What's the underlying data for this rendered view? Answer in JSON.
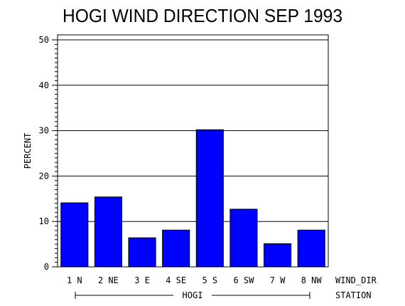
{
  "chart_data": {
    "type": "bar",
    "title": "HOGI WIND DIRECTION SEP 1993",
    "ylabel": "PERCENT",
    "xlabel": "WIND_DIR",
    "group_axis_label": "STATION",
    "group_label": "HOGI",
    "categories": [
      "1  N",
      "2  NE",
      "3  E",
      "4  SE",
      "5  S",
      "6  SW",
      "7  W",
      "8  NW"
    ],
    "values": [
      14.1,
      15.4,
      6.4,
      8.1,
      30.2,
      12.7,
      5.1,
      8.1
    ],
    "ylim": [
      0,
      50
    ],
    "yticks": [
      "0",
      "10",
      "20",
      "30",
      "40",
      "50"
    ],
    "bar_color": "#0000ff",
    "grid": true
  }
}
